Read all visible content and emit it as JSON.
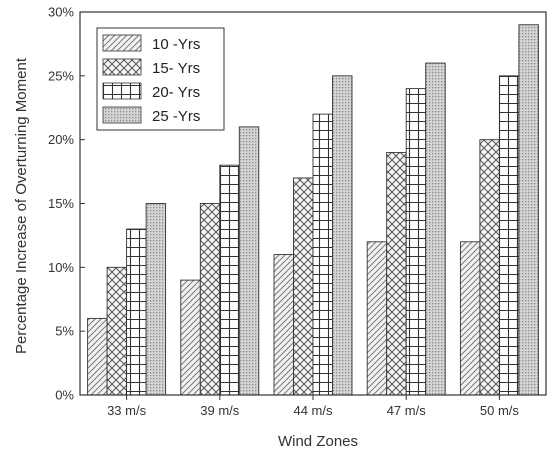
{
  "chart_data": {
    "type": "bar",
    "title": "",
    "xlabel": "Wind Zones",
    "ylabel": "Percentage Increase of Overturning Moment",
    "categories": [
      "33 m/s",
      "39 m/s",
      "44 m/s",
      "47 m/s",
      "50 m/s"
    ],
    "series": [
      {
        "name": "10 -Yrs",
        "pattern": "diagonal-hatch",
        "values": [
          6,
          9,
          11,
          12,
          12
        ]
      },
      {
        "name": "15- Yrs",
        "pattern": "crosshatch",
        "values": [
          10,
          15,
          17,
          19,
          20
        ]
      },
      {
        "name": "20- Yrs",
        "pattern": "grid",
        "values": [
          13,
          18,
          22,
          24,
          25
        ]
      },
      {
        "name": "25 -Yrs",
        "pattern": "dotted",
        "values": [
          15,
          21,
          25,
          26,
          29
        ]
      }
    ],
    "ylim": [
      0,
      30
    ],
    "yticks": [
      "0%",
      "5%",
      "10%",
      "15%",
      "20%",
      "25%",
      "30%"
    ],
    "legend_position": "top-left",
    "grid": false,
    "colors": {
      "stroke": "#333333",
      "background": "#ffffff"
    }
  }
}
